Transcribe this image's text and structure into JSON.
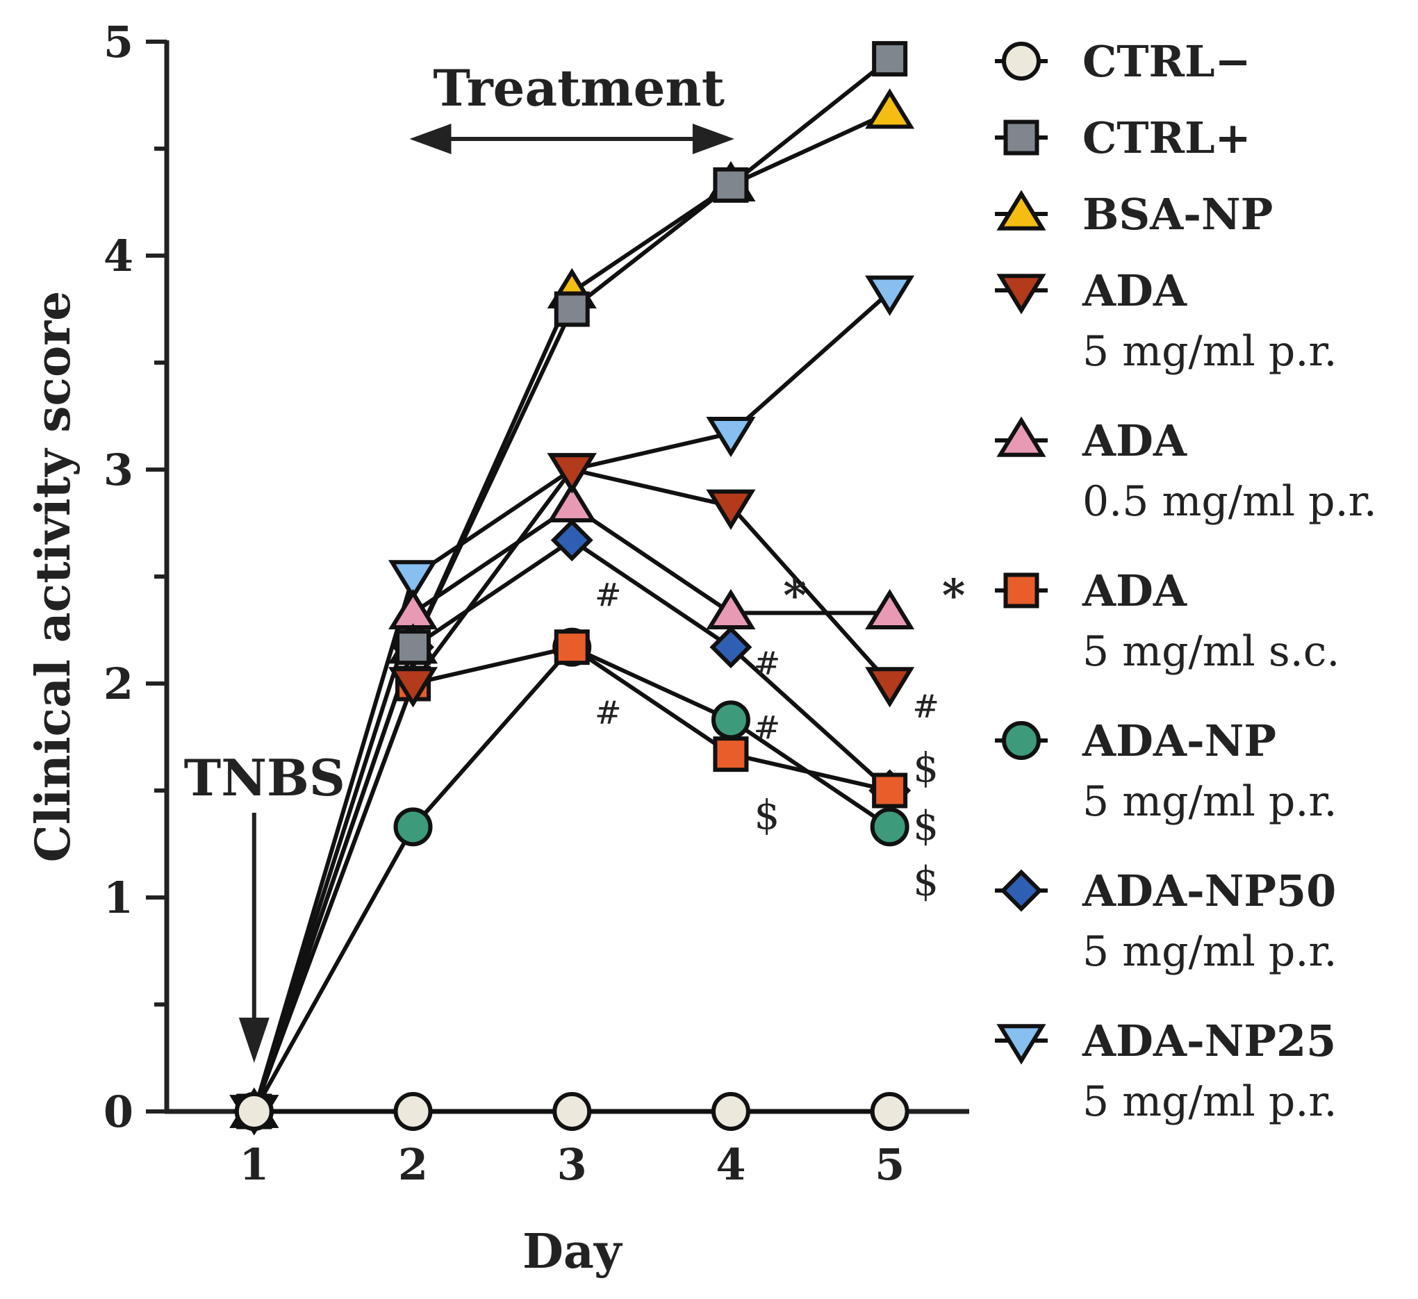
{
  "chart_data": {
    "type": "line",
    "xlabel": "Day",
    "ylabel": "Clinical activity score",
    "x": [
      1,
      2,
      3,
      4,
      5
    ],
    "xlim": [
      0.45,
      5.5
    ],
    "ylim": [
      0,
      5
    ],
    "xticks": [
      "1",
      "2",
      "3",
      "4",
      "5"
    ],
    "yticks": [
      "0",
      "1",
      "2",
      "3",
      "4",
      "5"
    ],
    "series": [
      {
        "name": "CTRL−",
        "sub": "",
        "marker": "circle",
        "color": "#ece8dc",
        "values": [
          0,
          0,
          0,
          0,
          0
        ]
      },
      {
        "name": "CTRL+",
        "sub": "",
        "marker": "square",
        "color": "#7f868e",
        "values": [
          0,
          2.17,
          3.75,
          4.33,
          4.92
        ]
      },
      {
        "name": "BSA-NP",
        "sub": "",
        "marker": "triangle-up",
        "color": "#f5bd12",
        "values": [
          0,
          2.17,
          3.83,
          4.33,
          4.67
        ]
      },
      {
        "name": "ADA",
        "sub": "5 mg/ml p.r.",
        "marker": "triangle-down",
        "color": "#b33a1a",
        "values": [
          0,
          2.0,
          3.0,
          2.83,
          2.0
        ]
      },
      {
        "name": "ADA",
        "sub": "0.5 mg/ml p.r.",
        "marker": "triangle-up",
        "color": "#e89ab4",
        "values": [
          0,
          2.33,
          2.83,
          2.33,
          2.33
        ]
      },
      {
        "name": "ADA",
        "sub": "5 mg/ml s.c.",
        "marker": "square",
        "color": "#e85d2a",
        "values": [
          0,
          2.0,
          2.17,
          1.67,
          1.5
        ]
      },
      {
        "name": "ADA-NP",
        "sub": "5 mg/ml p.r.",
        "marker": "circle",
        "color": "#3d9b7c",
        "values": [
          0,
          1.33,
          2.17,
          1.83,
          1.33
        ]
      },
      {
        "name": "ADA-NP50",
        "sub": "5 mg/ml p.r.",
        "marker": "diamond",
        "color": "#2f5fb3",
        "values": [
          0,
          2.17,
          2.67,
          2.17,
          1.5
        ]
      },
      {
        "name": "ADA-NP25",
        "sub": "5 mg/ml p.r.",
        "marker": "triangle-down",
        "color": "#86bff0",
        "values": [
          0,
          2.5,
          3.0,
          3.17,
          3.83
        ]
      }
    ],
    "annotations": {
      "treatment": {
        "label": "Treatment",
        "from_day": 2,
        "to_day": 4
      },
      "tnbs": {
        "label": "TNBS",
        "day": 1
      },
      "significance": [
        {
          "symbol": "*",
          "day": 4,
          "y": 2.4,
          "style": "star"
        },
        {
          "symbol": "*",
          "day": 5,
          "y": 2.4,
          "style": "star"
        },
        {
          "symbol": "#",
          "day": 3,
          "y": 2.42,
          "style": "hash"
        },
        {
          "symbol": "#",
          "day": 3,
          "y": 1.87,
          "style": "hash"
        },
        {
          "symbol": "#",
          "day": 4,
          "y": 2.1,
          "style": "hash"
        },
        {
          "symbol": "#",
          "day": 4,
          "y": 1.8,
          "style": "hash"
        },
        {
          "symbol": "#",
          "day": 5,
          "y": 1.9,
          "style": "hash"
        },
        {
          "symbol": "$",
          "day": 4,
          "y": 1.38,
          "style": "dollar"
        },
        {
          "symbol": "$",
          "day": 5,
          "y": 1.6,
          "style": "dollar"
        },
        {
          "symbol": "$",
          "day": 5,
          "y": 1.33,
          "style": "dollar"
        },
        {
          "symbol": "$",
          "day": 5,
          "y": 1.07,
          "style": "dollar"
        }
      ]
    }
  }
}
